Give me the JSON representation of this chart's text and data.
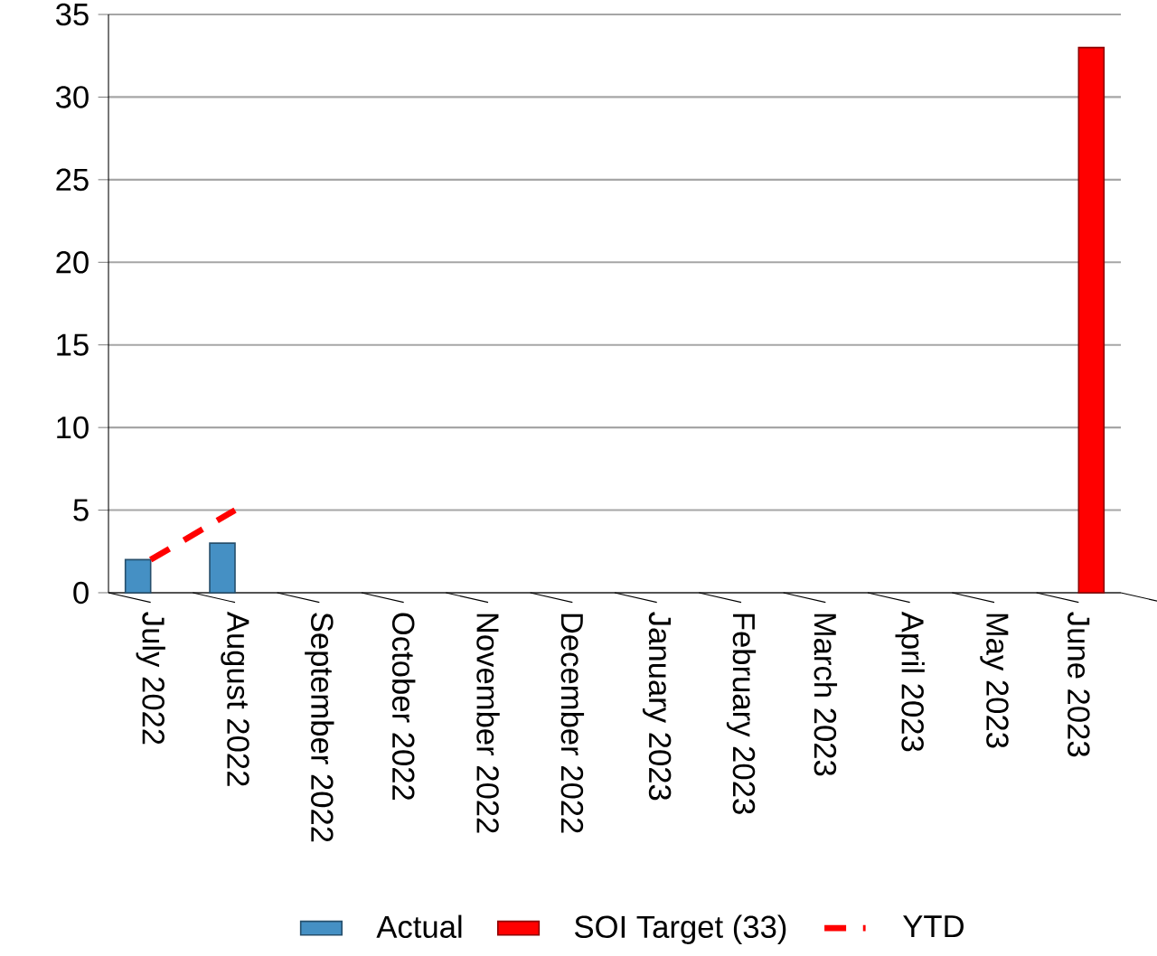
{
  "chart_data": {
    "type": "bar",
    "categories": [
      "July 2022",
      "August 2022",
      "September 2022",
      "October 2022",
      "November 2022",
      "December 2022",
      "January 2023",
      "February 2023",
      "March 2023",
      "April 2023",
      "May 2023",
      "June 2023"
    ],
    "series": [
      {
        "name": "Actual",
        "color": "#4590c4",
        "values": [
          2,
          3,
          null,
          null,
          null,
          null,
          null,
          null,
          null,
          null,
          null,
          null
        ]
      },
      {
        "name": "SOI Target (33)",
        "color": "#ff0000",
        "values": [
          null,
          null,
          null,
          null,
          null,
          null,
          null,
          null,
          null,
          null,
          null,
          33
        ]
      },
      {
        "name": "YTD",
        "type": "line",
        "line_style": "dashed",
        "color": "#ff0000",
        "values": [
          2,
          5,
          null,
          null,
          null,
          null,
          null,
          null,
          null,
          null,
          null,
          null
        ]
      }
    ],
    "ylim": [
      0,
      35
    ],
    "yticks": [
      0,
      5,
      10,
      15,
      20,
      25,
      30,
      35
    ],
    "grid": "y",
    "legend": "bottom"
  }
}
